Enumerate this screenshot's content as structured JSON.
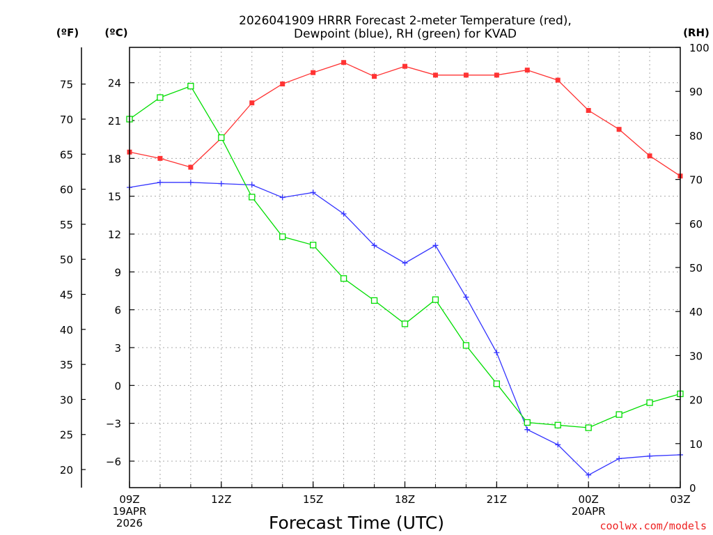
{
  "chart_data": {
    "type": "line",
    "title_lines": [
      "2026041909 HRRR Forecast 2-meter Temperature (red),",
      "Dewpoint (blue), RH (green) for KVAD"
    ],
    "xlabel": "Forecast Time (UTC)",
    "credit": "coolwx.com/models",
    "unit_labels": {
      "fahrenheit": "(ºF)",
      "celsius": "(ºC)",
      "rh": "(RH)"
    },
    "hours": [
      9,
      10,
      11,
      12,
      13,
      14,
      15,
      16,
      17,
      18,
      19,
      20,
      21,
      22,
      23,
      24,
      25,
      26,
      27
    ],
    "x_range": [
      9,
      27
    ],
    "x_ticks": [
      {
        "hour": 9,
        "lines": [
          "09Z",
          "19APR",
          "2026"
        ]
      },
      {
        "hour": 12,
        "lines": [
          "12Z"
        ]
      },
      {
        "hour": 15,
        "lines": [
          "15Z"
        ]
      },
      {
        "hour": 18,
        "lines": [
          "18Z"
        ]
      },
      {
        "hour": 21,
        "lines": [
          "21Z"
        ]
      },
      {
        "hour": 24,
        "lines": [
          "00Z",
          "20APR"
        ]
      },
      {
        "hour": 27,
        "lines": [
          "03Z"
        ]
      }
    ],
    "celsius_axis": {
      "range": [
        -8.1,
        26.8
      ],
      "ticks": [
        -6,
        -3,
        0,
        3,
        6,
        9,
        12,
        15,
        18,
        21,
        24
      ]
    },
    "fahrenheit_axis": {
      "ticks": [
        20,
        25,
        30,
        35,
        40,
        45,
        50,
        55,
        60,
        65,
        70,
        75
      ]
    },
    "rh_axis": {
      "range": [
        0,
        100
      ],
      "ticks": [
        0,
        10,
        20,
        30,
        40,
        50,
        60,
        70,
        80,
        90,
        100
      ]
    },
    "series": [
      {
        "name": "Temperature",
        "units": "C",
        "color": "#ff3333",
        "marker": "filled-square",
        "values": [
          18.5,
          18.0,
          17.3,
          19.6,
          22.4,
          23.9,
          24.8,
          25.6,
          24.5,
          25.3,
          24.6,
          24.6,
          24.6,
          25.0,
          24.2,
          21.8,
          20.3,
          18.2,
          16.6
        ]
      },
      {
        "name": "Dewpoint",
        "units": "C",
        "color": "#3333ff",
        "marker": "plus",
        "values": [
          15.7,
          16.1,
          16.1,
          16.0,
          15.9,
          14.9,
          15.3,
          13.6,
          11.1,
          9.7,
          11.1,
          7.0,
          2.6,
          -3.5,
          -4.7,
          -7.1,
          -5.8,
          -5.6,
          -5.5
        ]
      },
      {
        "name": "RH",
        "units": "%",
        "color": "#00dd00",
        "marker": "open-square",
        "values": [
          83.7,
          88.6,
          91.2,
          79.5,
          66.0,
          57.0,
          55.1,
          47.5,
          42.5,
          37.2,
          42.7,
          32.3,
          23.6,
          14.8,
          14.2,
          13.6,
          16.6,
          19.3,
          21.3
        ]
      }
    ]
  }
}
